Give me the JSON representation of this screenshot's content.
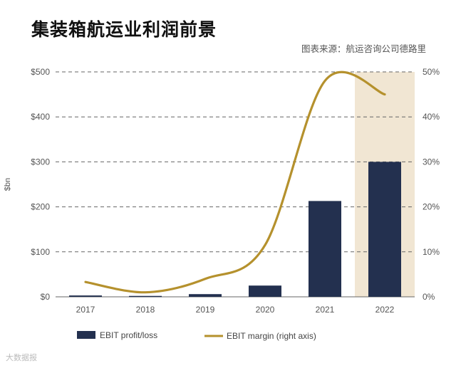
{
  "page": {
    "title": "集装箱航运业利润前景",
    "source": "图表来源：航运咨询公司德路里",
    "watermark": "大数据报"
  },
  "colors": {
    "bar": "#23304f",
    "line": "#b5912d",
    "highlight": "#f1e6d3",
    "grid": "#666666",
    "axis_text": "#555555"
  },
  "chart_data": {
    "type": "bar+line",
    "title": "集装箱航运业利润前景",
    "categories": [
      "2017",
      "2018",
      "2019",
      "2020",
      "2021",
      "2022"
    ],
    "series": [
      {
        "name": "EBIT profit/loss",
        "type": "bar",
        "axis": "left",
        "values": [
          3,
          2,
          6,
          25,
          213,
          300
        ]
      },
      {
        "name": "EBIT margin (right axis)",
        "type": "line",
        "axis": "right",
        "values": [
          3.3,
          1.0,
          4.0,
          11.5,
          48.0,
          45.0
        ]
      }
    ],
    "highlight_category": "2022",
    "ylabel": "$bn",
    "ylim": [
      0,
      500
    ],
    "yticks": [
      0,
      100,
      200,
      300,
      400,
      500
    ],
    "ytick_labels": [
      "$0",
      "$100",
      "$200",
      "$300",
      "$400",
      "$500"
    ],
    "y2lim": [
      0,
      50
    ],
    "y2ticks": [
      0,
      10,
      20,
      30,
      40,
      50
    ],
    "y2tick_labels": [
      "0%",
      "10%",
      "20%",
      "30%",
      "40%",
      "50%"
    ],
    "grid": "dashed horizontal",
    "legend": {
      "position": "bottom",
      "entries": [
        "EBIT profit/loss",
        "EBIT margin (right axis)"
      ]
    }
  }
}
